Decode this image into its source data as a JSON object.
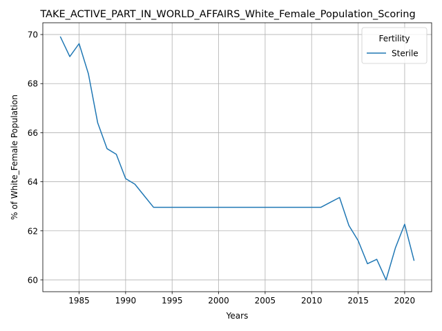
{
  "chart_data": {
    "type": "line",
    "title": "TAKE_ACTIVE_PART_IN_WORLD_AFFAIRS_White_Female_Population_Scoring",
    "xlabel": "Years",
    "ylabel": "% of White_Female Population",
    "xlim": [
      1981.1,
      2022.9
    ],
    "ylim": [
      59.52,
      70.48
    ],
    "xticks": [
      1985,
      1990,
      1995,
      2000,
      2005,
      2010,
      2015,
      2020
    ],
    "yticks": [
      60,
      62,
      64,
      66,
      68,
      70
    ],
    "grid": true,
    "legend": {
      "title": "Fertility",
      "placement": "top-right"
    },
    "series": [
      {
        "name": "Sterile",
        "color": "#1f77b4",
        "x": [
          1983,
          1984,
          1985,
          1986,
          1987,
          1988,
          1989,
          1990,
          1991,
          1992,
          1993,
          1994,
          1995,
          1996,
          1997,
          1998,
          1999,
          2000,
          2001,
          2002,
          2003,
          2004,
          2005,
          2006,
          2007,
          2008,
          2009,
          2010,
          2011,
          2012,
          2013,
          2014,
          2015,
          2016,
          2017,
          2018,
          2019,
          2020,
          2021
        ],
        "y": [
          69.9,
          69.1,
          69.63,
          68.4,
          66.4,
          65.35,
          65.12,
          64.13,
          63.9,
          63.43,
          62.96,
          62.96,
          62.96,
          62.96,
          62.96,
          62.96,
          62.96,
          62.96,
          62.96,
          62.96,
          62.96,
          62.96,
          62.96,
          62.96,
          62.96,
          62.96,
          62.96,
          62.96,
          62.96,
          63.16,
          63.36,
          62.22,
          61.6,
          60.66,
          60.84,
          60.0,
          61.3,
          62.27,
          60.8
        ]
      }
    ]
  }
}
